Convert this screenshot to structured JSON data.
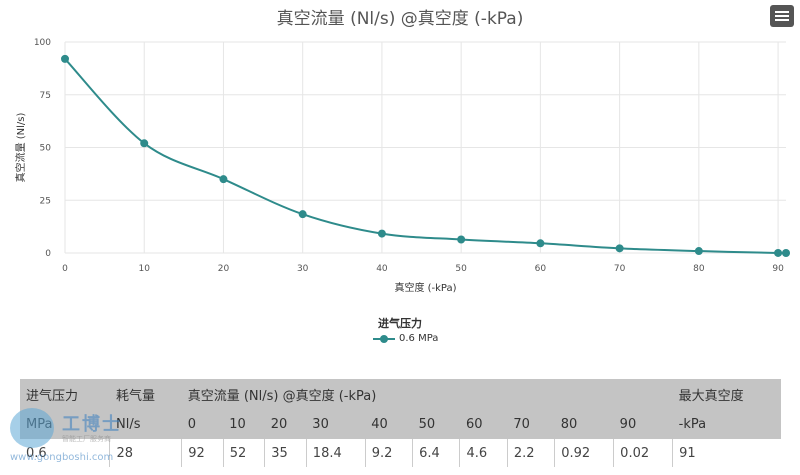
{
  "chart_data": {
    "type": "line",
    "title": "真空流量 (Nl/s) @真空度 (-kPa)",
    "xlabel": "真空度 (-kPa)",
    "ylabel": "真空流量 (Nl/s)",
    "xlim": [
      0,
      91
    ],
    "ylim": [
      0,
      100
    ],
    "xticks": [
      0,
      10,
      20,
      30,
      40,
      50,
      60,
      70,
      80,
      90
    ],
    "yticks": [
      0,
      25,
      50,
      75,
      100
    ],
    "grid": true,
    "legend_title": "进气压力",
    "legend_position": "bottom",
    "series": [
      {
        "name": "0.6 MPa",
        "color": "#2e8b8b",
        "x": [
          0,
          10,
          20,
          30,
          40,
          50,
          60,
          70,
          80,
          90,
          91
        ],
        "y": [
          92,
          52,
          35,
          18.4,
          9.2,
          6.4,
          4.6,
          2.2,
          0.92,
          0.02,
          0
        ]
      }
    ]
  },
  "table": {
    "header_row1": [
      "进气压力",
      "耗气量",
      "真空流量 (Nl/s) @真空度 (-kPa)",
      "最大真空度"
    ],
    "header_row2": [
      "MPa",
      "Nl/s",
      "0",
      "10",
      "20",
      "30",
      "40",
      "50",
      "60",
      "70",
      "80",
      "90",
      "-kPa"
    ],
    "row": [
      "0.6",
      "28",
      "92",
      "52",
      "35",
      "18.4",
      "9.2",
      "6.4",
      "4.6",
      "2.2",
      "0.92",
      "0.02",
      "91"
    ]
  },
  "watermark": {
    "brand": "工博士",
    "sub": "智能工厂服务商",
    "url": "www.gongboshi.com"
  }
}
